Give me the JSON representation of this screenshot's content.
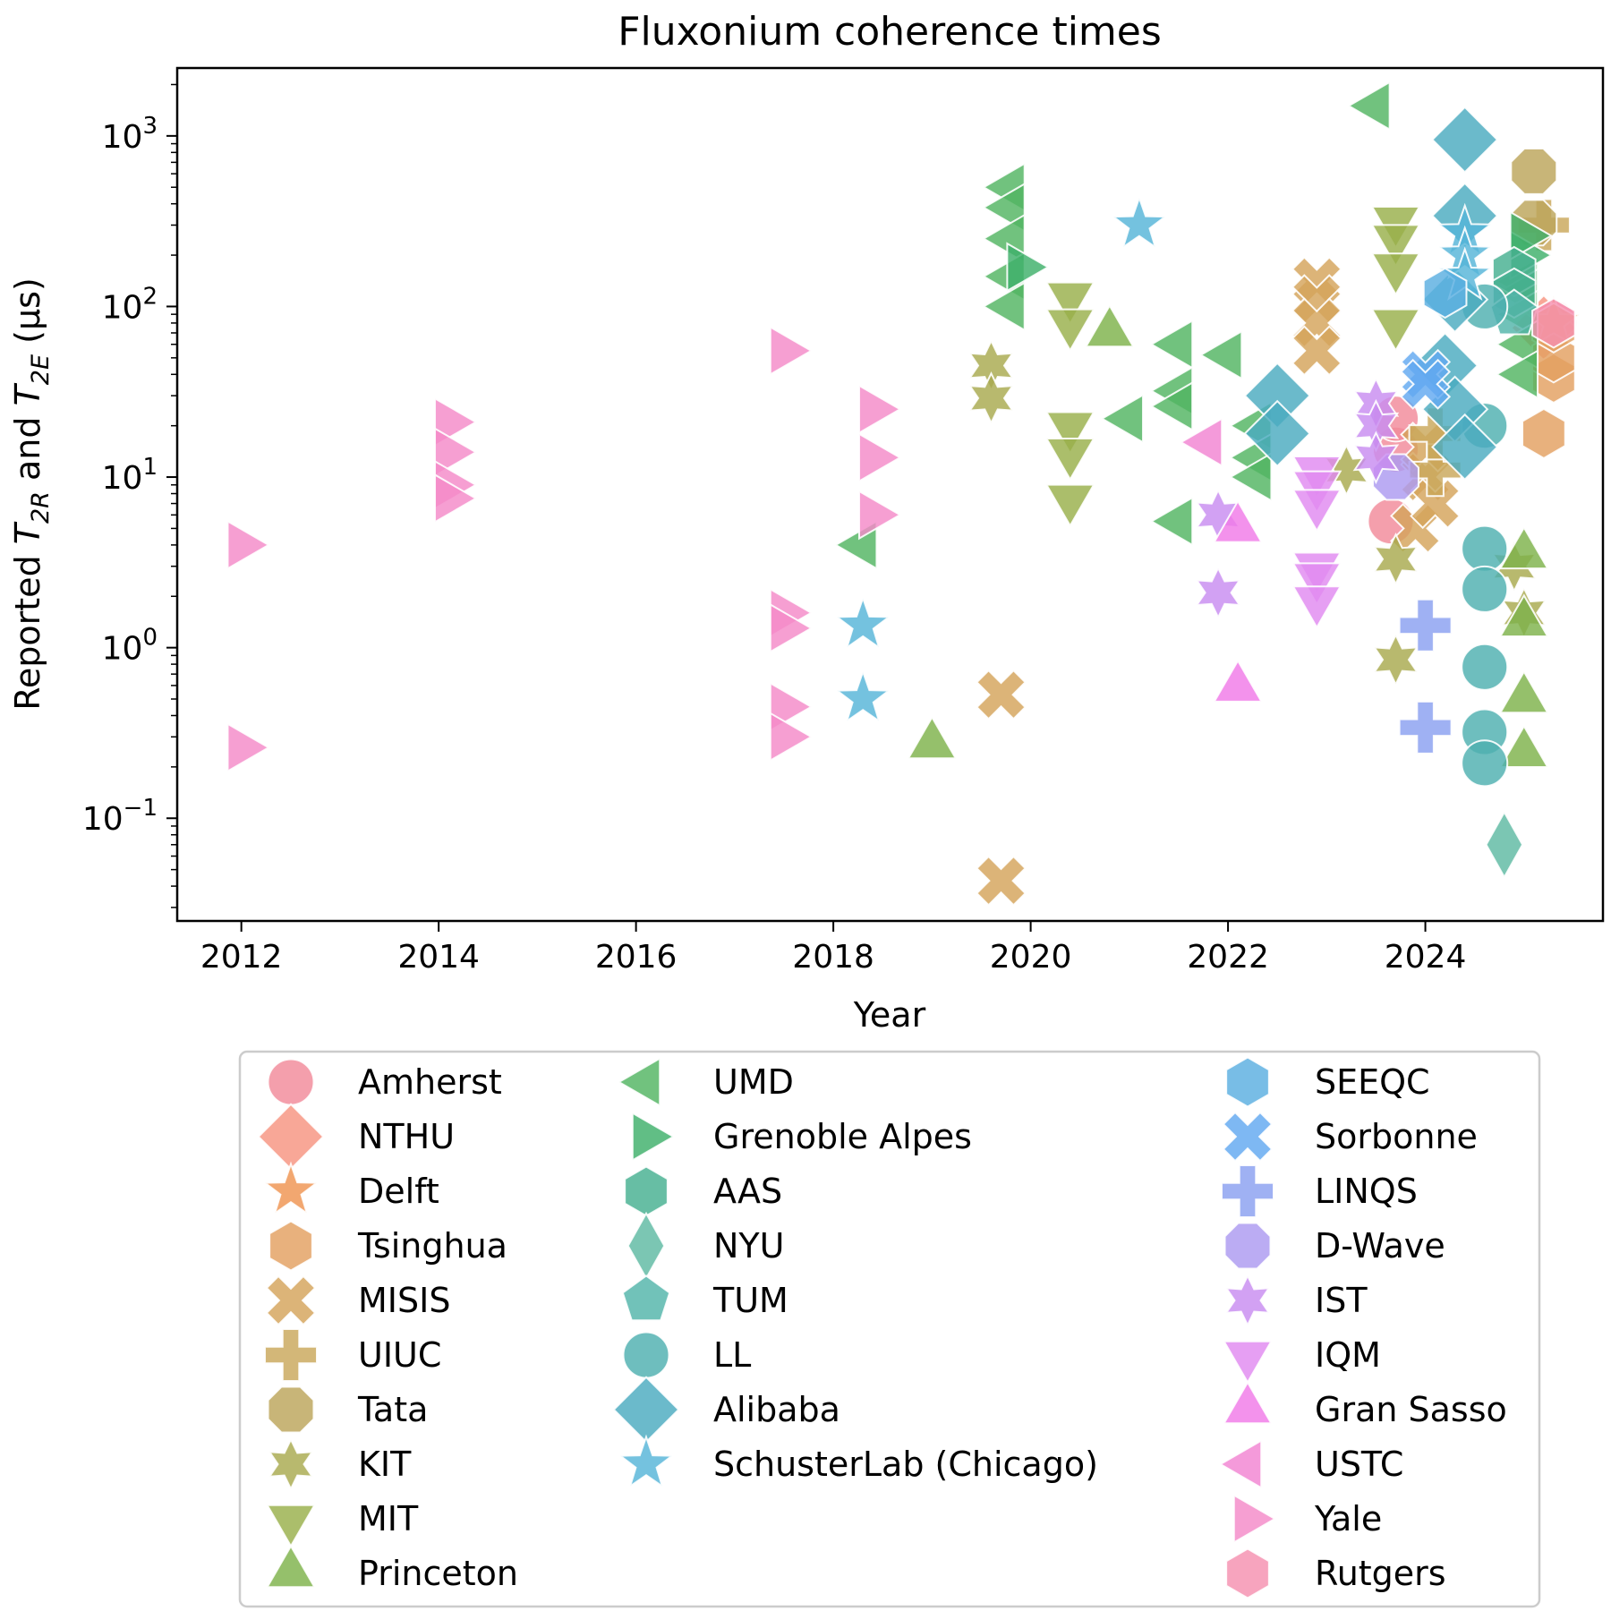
{
  "chart_data": {
    "type": "scatter",
    "title": "Fluxonium coherence times",
    "xlabel": "Year",
    "ylabel": "Reported T2R and T2E (µs)",
    "ylabel_parts": {
      "prefix": "Reported ",
      "t1": "T",
      "s1": "2R",
      "mid": " and ",
      "t2": "T",
      "s2": "2E",
      "suffix": " (µs)"
    },
    "xlim": [
      2011.35,
      2025.8
    ],
    "ylim": [
      0.025,
      2500
    ],
    "yscale": "log",
    "grid": false,
    "legend_placement": "below plot, three columns",
    "x_ticks": [
      2012,
      2014,
      2016,
      2018,
      2020,
      2022,
      2024
    ],
    "x_tick_labels": [
      "2012",
      "2014",
      "2016",
      "2018",
      "2020",
      "2022",
      "2024"
    ],
    "y_ticks": [
      0.1,
      1,
      10,
      100,
      1000
    ],
    "y_tick_labels": [
      {
        "base": "10",
        "exp": "−1"
      },
      {
        "base": "10",
        "exp": "0"
      },
      {
        "base": "10",
        "exp": "1"
      },
      {
        "base": "10",
        "exp": "2"
      },
      {
        "base": "10",
        "exp": "3"
      }
    ],
    "series": [
      {
        "name": "Amherst",
        "color": "#f28a9a",
        "marker": "circle",
        "points": [
          [
            2023.65,
            5.5
          ],
          [
            2023.7,
            14.5
          ],
          [
            2023.7,
            22
          ],
          [
            2025.3,
            80
          ]
        ]
      },
      {
        "name": "NTHU",
        "color": "#f69480",
        "marker": "diamond",
        "points": [
          [
            2025.2,
            75
          ]
        ]
      },
      {
        "name": "Delft",
        "color": "#ef9450",
        "marker": "star",
        "points": [
          [
            2025.3,
            80
          ]
        ]
      },
      {
        "name": "Tsinghua",
        "color": "#e3a060",
        "marker": "hexagon",
        "points": [
          [
            2025.2,
            18
          ],
          [
            2025.3,
            38
          ],
          [
            2025.3,
            50
          ],
          [
            2025.3,
            75
          ]
        ]
      },
      {
        "name": "MISIS",
        "color": "#d4a45a",
        "marker": "x",
        "points": [
          [
            2019.7,
            0.53
          ],
          [
            2019.7,
            0.043
          ],
          [
            2022.9,
            140
          ],
          [
            2022.9,
            110
          ],
          [
            2022.9,
            80
          ],
          [
            2022.9,
            55
          ],
          [
            2023.9,
            5
          ],
          [
            2024.0,
            10
          ],
          [
            2024.0,
            15
          ],
          [
            2024.1,
            7
          ]
        ]
      },
      {
        "name": "UIUC",
        "color": "#c9a75a",
        "marker": "plus",
        "points": [
          [
            2024.1,
            11
          ],
          [
            2024.1,
            18
          ],
          [
            2025.2,
            300
          ]
        ]
      },
      {
        "name": "Tata",
        "color": "#bca55a",
        "marker": "octagon",
        "points": [
          [
            2025.1,
            620
          ],
          [
            2025.1,
            310
          ]
        ]
      },
      {
        "name": "KIT",
        "color": "#a8a94e",
        "marker": "star6",
        "points": [
          [
            2019.6,
            45
          ],
          [
            2019.6,
            29
          ],
          [
            2023.2,
            11
          ],
          [
            2023.7,
            3.3
          ],
          [
            2023.7,
            0.85
          ],
          [
            2024.9,
            3.0
          ],
          [
            2025.0,
            1.6
          ]
        ]
      },
      {
        "name": "MIT",
        "color": "#98b04a",
        "marker": "tri-down",
        "points": [
          [
            2020.4,
            115
          ],
          [
            2020.4,
            80
          ],
          [
            2020.4,
            20
          ],
          [
            2020.4,
            14
          ],
          [
            2020.4,
            7.5
          ],
          [
            2023.7,
            320
          ],
          [
            2023.7,
            250
          ],
          [
            2023.7,
            170
          ],
          [
            2023.7,
            80
          ]
        ]
      },
      {
        "name": "Princeton",
        "color": "#7eb24a",
        "marker": "tri-up",
        "points": [
          [
            2019.0,
            0.27
          ],
          [
            2020.8,
            70
          ],
          [
            2025.0,
            3.5
          ],
          [
            2025.0,
            1.4
          ],
          [
            2025.0,
            0.5
          ],
          [
            2025.0,
            0.24
          ]
        ]
      },
      {
        "name": "UMD",
        "color": "#52b462",
        "marker": "tri-left",
        "points": [
          [
            2018.3,
            4
          ],
          [
            2019.8,
            500
          ],
          [
            2019.8,
            380
          ],
          [
            2019.8,
            250
          ],
          [
            2019.8,
            150
          ],
          [
            2019.8,
            100
          ],
          [
            2021.0,
            22
          ],
          [
            2021.5,
            60
          ],
          [
            2021.5,
            32
          ],
          [
            2021.5,
            26
          ],
          [
            2021.5,
            5.5
          ],
          [
            2022.0,
            52
          ],
          [
            2022.3,
            20
          ],
          [
            2022.3,
            13
          ],
          [
            2022.3,
            10
          ],
          [
            2023.5,
            1500
          ],
          [
            2025.0,
            140
          ],
          [
            2025.0,
            120
          ],
          [
            2025.0,
            90
          ],
          [
            2025.0,
            60
          ],
          [
            2025.0,
            40
          ]
        ]
      },
      {
        "name": "Grenoble Alpes",
        "color": "#3eb06a",
        "marker": "tri-right",
        "points": [
          [
            2019.9,
            170
          ],
          [
            2025.0,
            200
          ],
          [
            2025.0,
            260
          ]
        ]
      },
      {
        "name": "AAS",
        "color": "#45b090",
        "marker": "hexagon",
        "points": [
          [
            2024.9,
            160
          ],
          [
            2024.9,
            120
          ]
        ]
      },
      {
        "name": "NYU",
        "color": "#5ebaa2",
        "marker": "thin-diamond",
        "points": [
          [
            2024.8,
            0.07
          ]
        ]
      },
      {
        "name": "TUM",
        "color": "#52b5aa",
        "marker": "pentagon",
        "points": [
          [
            2024.9,
            90
          ]
        ]
      },
      {
        "name": "LL",
        "color": "#4eb0b0",
        "marker": "circle",
        "points": [
          [
            2024.6,
            3.8
          ],
          [
            2024.6,
            2.2
          ],
          [
            2024.6,
            0.77
          ],
          [
            2024.6,
            0.32
          ],
          [
            2024.6,
            0.21
          ],
          [
            2024.6,
            20
          ],
          [
            2024.6,
            100
          ]
        ]
      },
      {
        "name": "Alibaba",
        "color": "#4aabc0",
        "marker": "diamond",
        "points": [
          [
            2024.4,
            950
          ],
          [
            2024.4,
            340
          ],
          [
            2024.3,
            110
          ],
          [
            2024.2,
            45
          ],
          [
            2024.3,
            25
          ],
          [
            2024.4,
            15
          ],
          [
            2022.5,
            30
          ],
          [
            2022.5,
            18
          ]
        ]
      },
      {
        "name": "SchusterLab (Chicago)",
        "color": "#55b4d8",
        "marker": "star",
        "points": [
          [
            2018.3,
            1.35
          ],
          [
            2018.3,
            0.5
          ],
          [
            2021.1,
            300
          ],
          [
            2024.4,
            270
          ],
          [
            2024.4,
            200
          ],
          [
            2024.4,
            150
          ]
        ]
      },
      {
        "name": "SEEQC",
        "color": "#5aaee0",
        "marker": "hexagon",
        "points": [
          [
            2024.2,
            120
          ]
        ]
      },
      {
        "name": "Sorbonne",
        "color": "#62a8f0",
        "marker": "x",
        "points": [
          [
            2024.0,
            40
          ],
          [
            2024.0,
            35
          ]
        ]
      },
      {
        "name": "LINQS",
        "color": "#8aa0f0",
        "marker": "plus",
        "points": [
          [
            2024.0,
            1.35
          ],
          [
            2024.0,
            0.34
          ]
        ]
      },
      {
        "name": "D-Wave",
        "color": "#ac9af0",
        "marker": "octagon",
        "points": [
          [
            2023.7,
            10
          ]
        ]
      },
      {
        "name": "IST",
        "color": "#c88cf0",
        "marker": "star6",
        "points": [
          [
            2021.9,
            6
          ],
          [
            2021.9,
            2.1
          ],
          [
            2023.5,
            27
          ],
          [
            2023.5,
            20
          ],
          [
            2023.5,
            13
          ]
        ]
      },
      {
        "name": "IQM",
        "color": "#e08af0",
        "marker": "tri-down",
        "points": [
          [
            2022.9,
            11
          ],
          [
            2022.9,
            9
          ],
          [
            2022.9,
            7
          ],
          [
            2022.9,
            3
          ],
          [
            2022.9,
            2.6
          ],
          [
            2022.9,
            1.9
          ]
        ]
      },
      {
        "name": "Gran Sasso",
        "color": "#f07ae8",
        "marker": "tri-up",
        "points": [
          [
            2022.1,
            5
          ],
          [
            2022.1,
            0.58
          ]
        ]
      },
      {
        "name": "USTC",
        "color": "#f284d2",
        "marker": "tri-left",
        "points": [
          [
            2021.8,
            16
          ]
        ]
      },
      {
        "name": "Yale",
        "color": "#f48ac8",
        "marker": "tri-right",
        "points": [
          [
            2012.0,
            4
          ],
          [
            2012.0,
            0.26
          ],
          [
            2014.1,
            21
          ],
          [
            2014.1,
            14
          ],
          [
            2014.1,
            9
          ],
          [
            2014.1,
            7.5
          ],
          [
            2017.5,
            55
          ],
          [
            2017.5,
            1.6
          ],
          [
            2017.5,
            1.3
          ],
          [
            2017.5,
            0.45
          ],
          [
            2017.5,
            0.3
          ],
          [
            2018.4,
            25
          ],
          [
            2018.4,
            13
          ],
          [
            2018.4,
            6
          ]
        ]
      },
      {
        "name": "Rutgers",
        "color": "#f590b0",
        "marker": "hexagon",
        "points": [
          [
            2025.3,
            80
          ]
        ]
      }
    ]
  }
}
